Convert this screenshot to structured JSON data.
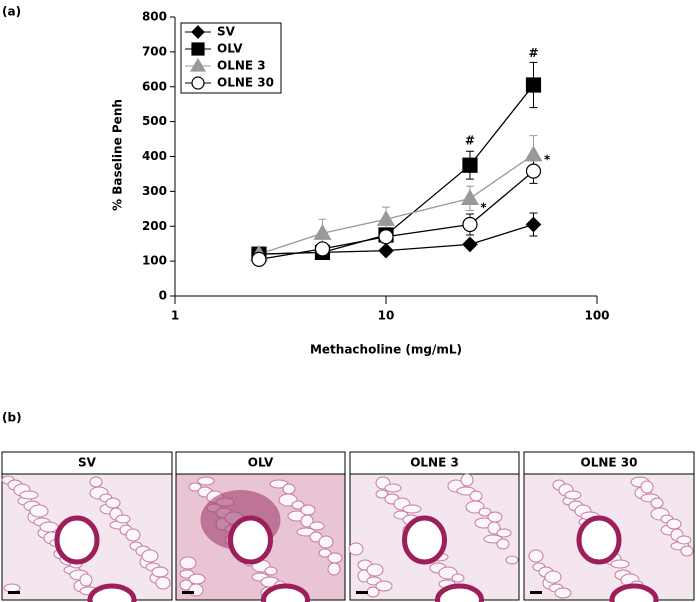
{
  "panels": {
    "a": "(a)",
    "b": "(b)",
    "images": [
      "SV",
      "OLV",
      "OLNE 3",
      "OLNE 30"
    ]
  },
  "chart_data": {
    "type": "line",
    "x_label": "Methacholine (mg/mL)",
    "y_label": "% Baseline Penh",
    "x": [
      2.5,
      5,
      10,
      25,
      50
    ],
    "xlog": true,
    "xlim": [
      1,
      100
    ],
    "xticks": [
      1,
      10,
      100
    ],
    "ylim": [
      0,
      800
    ],
    "yticks": [
      0,
      100,
      200,
      300,
      400,
      500,
      600,
      700,
      800
    ],
    "legend": "upper left",
    "series": [
      {
        "name": "SV",
        "color": "#000000",
        "marker": "diamond",
        "line_color": "#000000",
        "values": [
          120,
          125,
          130,
          148,
          205
        ],
        "errors": [
          5,
          10,
          8,
          10,
          33
        ]
      },
      {
        "name": "OLV",
        "color": "#000000",
        "marker": "square",
        "line_color": "#000000",
        "values": [
          120,
          125,
          175,
          375,
          605
        ],
        "errors": [
          5,
          10,
          15,
          40,
          65
        ]
      },
      {
        "name": "OLNE 3",
        "color": "#999999",
        "marker": "triangle",
        "line_color": "#999999",
        "values": [
          120,
          180,
          220,
          280,
          405
        ],
        "errors": [
          5,
          40,
          35,
          35,
          55
        ]
      },
      {
        "name": "OLNE 30",
        "color": "#ffffff",
        "marker": "circle",
        "line_color": "#000000",
        "values": [
          105,
          135,
          170,
          205,
          358
        ],
        "errors": [
          5,
          10,
          15,
          30,
          35
        ]
      }
    ],
    "annotations": [
      {
        "text": "#",
        "x": 25,
        "y": 445
      },
      {
        "text": "#",
        "x": 50,
        "y": 695
      },
      {
        "text": "*",
        "x": 29,
        "y": 252
      },
      {
        "text": "*",
        "x": 58,
        "y": 390
      }
    ]
  }
}
